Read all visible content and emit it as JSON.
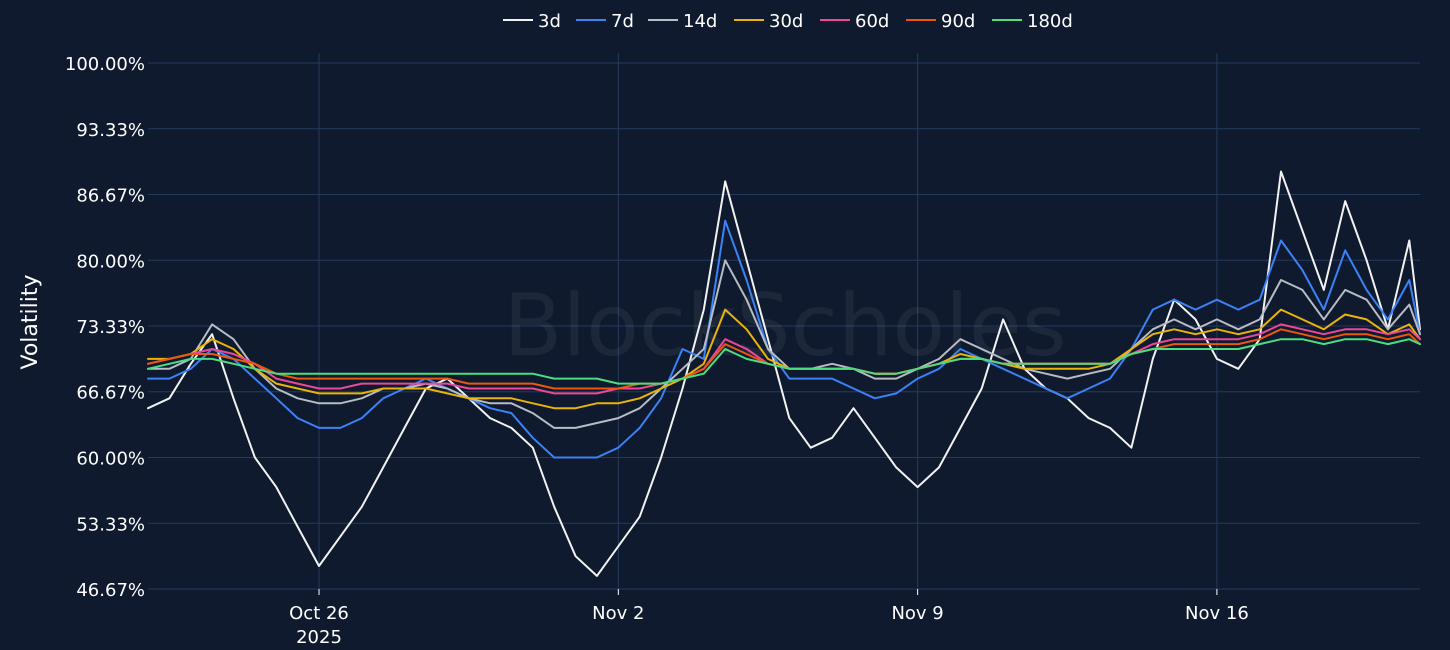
{
  "chart_data": {
    "type": "line",
    "title": "",
    "ylabel": "Volatility",
    "xlabel": "",
    "watermark": "BlockScholes",
    "legend_position": "top-center",
    "grid": true,
    "x_range": [
      "2025-10-22T00:00",
      "2025-11-20T18:00"
    ],
    "ylim": [
      46.67,
      100.0
    ],
    "y_ticks": [
      "100.00%",
      "93.33%",
      "86.67%",
      "80.00%",
      "73.33%",
      "66.67%",
      "60.00%",
      "53.33%",
      "46.67%"
    ],
    "y_tick_values": [
      100.0,
      93.33,
      86.67,
      80.0,
      73.33,
      66.67,
      60.0,
      53.33,
      46.67
    ],
    "x_ticks": [
      {
        "date": "2025-10-26",
        "label": "Oct 26",
        "sublabel": "2025"
      },
      {
        "date": "2025-11-02",
        "label": "Nov 2",
        "sublabel": ""
      },
      {
        "date": "2025-11-09",
        "label": "Nov 9",
        "sublabel": ""
      },
      {
        "date": "2025-11-16",
        "label": "Nov 16",
        "sublabel": ""
      }
    ],
    "x": [
      "2025-10-22T00:00",
      "2025-10-22T12:00",
      "2025-10-23T00:00",
      "2025-10-23T12:00",
      "2025-10-24T00:00",
      "2025-10-24T12:00",
      "2025-10-25T00:00",
      "2025-10-25T12:00",
      "2025-10-26T00:00",
      "2025-10-26T12:00",
      "2025-10-27T00:00",
      "2025-10-27T12:00",
      "2025-10-28T00:00",
      "2025-10-28T12:00",
      "2025-10-29T00:00",
      "2025-10-29T12:00",
      "2025-10-30T00:00",
      "2025-10-30T12:00",
      "2025-10-31T00:00",
      "2025-10-31T12:00",
      "2025-11-01T00:00",
      "2025-11-01T12:00",
      "2025-11-02T00:00",
      "2025-11-02T12:00",
      "2025-11-03T00:00",
      "2025-11-03T12:00",
      "2025-11-04T00:00",
      "2025-11-04T12:00",
      "2025-11-05T00:00",
      "2025-11-05T12:00",
      "2025-11-06T00:00",
      "2025-11-06T12:00",
      "2025-11-07T00:00",
      "2025-11-07T12:00",
      "2025-11-08T00:00",
      "2025-11-08T12:00",
      "2025-11-09T00:00",
      "2025-11-09T12:00",
      "2025-11-10T00:00",
      "2025-11-10T12:00",
      "2025-11-11T00:00",
      "2025-11-11T12:00",
      "2025-11-12T00:00",
      "2025-11-12T12:00",
      "2025-11-13T00:00",
      "2025-11-13T12:00",
      "2025-11-14T00:00",
      "2025-11-14T12:00",
      "2025-11-15T00:00",
      "2025-11-15T12:00",
      "2025-11-16T00:00",
      "2025-11-16T12:00",
      "2025-11-17T00:00",
      "2025-11-17T12:00",
      "2025-11-18T00:00",
      "2025-11-18T12:00",
      "2025-11-19T00:00",
      "2025-11-19T12:00",
      "2025-11-20T00:00",
      "2025-11-20T12:00",
      "2025-11-20T18:00"
    ],
    "series": [
      {
        "name": "3d",
        "color": "#f2f2f2",
        "values": [
          65,
          66,
          69.5,
          72.5,
          66,
          60,
          57,
          53,
          49,
          52,
          55,
          59,
          63,
          67,
          68,
          66,
          64,
          63,
          61,
          55,
          50,
          48,
          51,
          54,
          60,
          67,
          75,
          88,
          80,
          72,
          64,
          61,
          62,
          65,
          62,
          59,
          57,
          59,
          63,
          67,
          74,
          69,
          67,
          66,
          64,
          63,
          61,
          70,
          76,
          74,
          70,
          69,
          72,
          89,
          83,
          77,
          86,
          80,
          73,
          82,
          73
        ]
      },
      {
        "name": "7d",
        "color": "#3b82f6",
        "values": [
          68,
          68,
          69,
          71,
          70,
          68,
          66,
          64,
          63,
          63,
          64,
          66,
          67,
          68,
          67,
          66,
          65,
          64.5,
          62,
          60,
          60,
          60,
          61,
          63,
          66,
          71,
          70,
          84,
          78,
          71,
          68,
          68,
          68,
          67,
          66,
          66.5,
          68,
          69,
          71,
          70,
          69,
          68,
          67,
          66,
          67,
          68,
          71,
          75,
          76,
          75,
          76,
          75,
          76,
          82,
          79,
          75,
          81,
          77,
          74,
          78,
          72.5
        ]
      },
      {
        "name": "14d",
        "color": "#b8bcc4",
        "values": [
          69,
          69,
          70,
          73.5,
          72,
          69,
          67,
          66,
          65.5,
          65.5,
          66,
          67,
          67,
          67.5,
          67,
          66,
          65.5,
          65.5,
          64.5,
          63,
          63,
          63.5,
          64,
          65,
          67,
          69,
          71,
          80,
          76,
          71,
          69,
          69,
          69.5,
          69,
          68,
          68,
          69,
          70,
          72,
          71,
          70,
          69,
          68.5,
          68,
          68.5,
          69,
          71,
          73,
          74,
          73,
          74,
          73,
          74,
          78,
          77,
          74,
          77,
          76,
          73,
          75.5,
          72.5
        ]
      },
      {
        "name": "30d",
        "color": "#eab308",
        "values": [
          70,
          70,
          70.5,
          72,
          71,
          69,
          67.5,
          67,
          66.5,
          66.5,
          66.5,
          67,
          67,
          67,
          66.5,
          66,
          66,
          66,
          65.5,
          65,
          65,
          65.5,
          65.5,
          66,
          67,
          68,
          69.5,
          75,
          73,
          70,
          69,
          69,
          69,
          69,
          68.5,
          68.5,
          69,
          69.5,
          70.5,
          70,
          69.5,
          69,
          69,
          69,
          69,
          69.5,
          71,
          72.5,
          73,
          72.5,
          73,
          72.5,
          73,
          75,
          74,
          73,
          74.5,
          74,
          72.5,
          73.5,
          72
        ]
      },
      {
        "name": "60d",
        "color": "#ec4899",
        "values": [
          69.5,
          70,
          70.5,
          71,
          70.5,
          69.5,
          68,
          67.5,
          67,
          67,
          67.5,
          67.5,
          67.5,
          67.5,
          67.5,
          67,
          67,
          67,
          67,
          66.5,
          66.5,
          66.5,
          67,
          67,
          67.5,
          68,
          69,
          72,
          71,
          69.5,
          69,
          69,
          69,
          69,
          68.5,
          68.5,
          69,
          69.5,
          70,
          70,
          69.5,
          69.5,
          69.5,
          69.5,
          69.5,
          69.5,
          70.5,
          71.5,
          72,
          72,
          72,
          72,
          72.5,
          73.5,
          73,
          72.5,
          73,
          73,
          72.5,
          73,
          72
        ]
      },
      {
        "name": "90d",
        "color": "#ea580c",
        "values": [
          69.5,
          70,
          70.5,
          70.5,
          70,
          69.5,
          68.5,
          68,
          68,
          68,
          68,
          68,
          68,
          68,
          68,
          67.5,
          67.5,
          67.5,
          67.5,
          67,
          67,
          67,
          67,
          67.5,
          67.5,
          68,
          69,
          71.5,
          70.5,
          69.5,
          69,
          69,
          69,
          69,
          68.5,
          68.5,
          69,
          69.5,
          70,
          70,
          69.5,
          69.5,
          69.5,
          69.5,
          69.5,
          69.5,
          70.5,
          71,
          71.5,
          71.5,
          71.5,
          71.5,
          72,
          73,
          72.5,
          72,
          72.5,
          72.5,
          72,
          72.5,
          71.5
        ]
      },
      {
        "name": "180d",
        "color": "#4ade80",
        "values": [
          69,
          69.5,
          70,
          70,
          69.5,
          69,
          68.5,
          68.5,
          68.5,
          68.5,
          68.5,
          68.5,
          68.5,
          68.5,
          68.5,
          68.5,
          68.5,
          68.5,
          68.5,
          68,
          68,
          68,
          67.5,
          67.5,
          67.5,
          68,
          68.5,
          71,
          70,
          69.5,
          69,
          69,
          69,
          69,
          68.5,
          68.5,
          69,
          69.5,
          70,
          70,
          69.5,
          69.5,
          69.5,
          69.5,
          69.5,
          69.5,
          70.5,
          71,
          71,
          71,
          71,
          71,
          71.5,
          72,
          72,
          71.5,
          72,
          72,
          71.5,
          72,
          71.5
        ]
      }
    ]
  }
}
